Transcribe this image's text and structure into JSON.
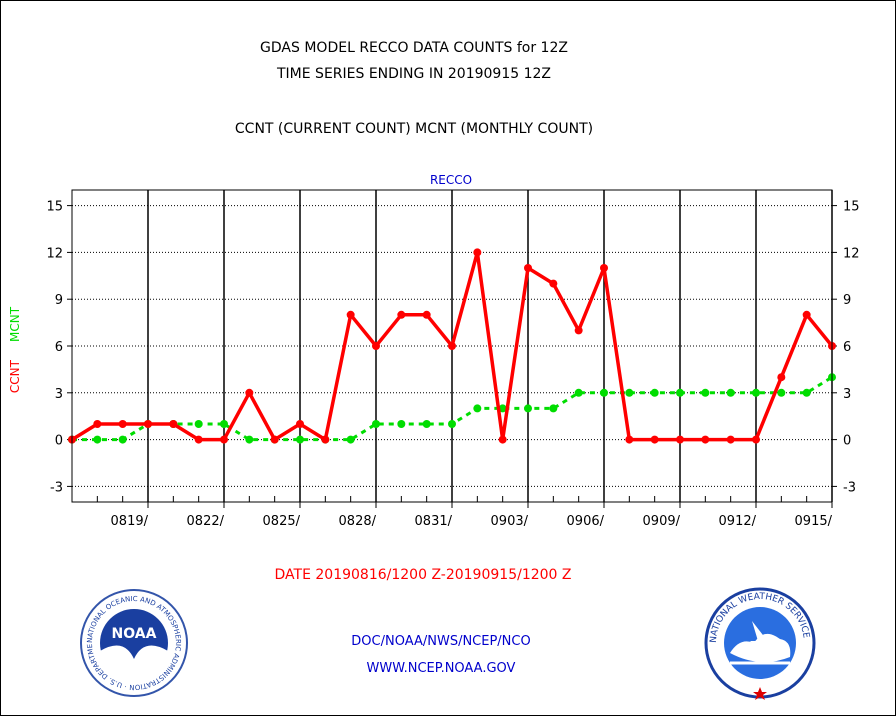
{
  "header": {
    "title_line1": "GDAS MODEL RECCO DATA COUNTS for 12Z",
    "title_line2": "TIME SERIES ENDING IN 20190915 12Z",
    "subtitle": "CCNT (CURRENT COUNT) MCNT (MONTHLY COUNT)"
  },
  "footer": {
    "date_range": "DATE 20190816/1200 Z-20190915/1200 Z",
    "credit": "DOC/NOAA/NWS/NCEP/NCO",
    "url": "WWW.NCEP.NOAA.GOV"
  },
  "logos": {
    "noaa_text": "NOAA",
    "noaa_ring_text": "NATIONAL OCEANIC AND ATMOSPHERIC ADMINISTRATION · U.S. DEPARTMENT OF COMMERCE",
    "nws_ring_text": "NATIONAL WEATHER SERVICE"
  },
  "colors": {
    "ccnt": "#ff0000",
    "mcnt": "#00dd00",
    "text_blue": "#0000cc",
    "text_red": "#ff0000"
  },
  "chart_data": {
    "type": "line",
    "title": "RECCO",
    "ylabel_ccnt": "CCNT",
    "ylabel_mcnt": "MCNT",
    "ylim": [
      -4,
      16
    ],
    "yticks": [
      -3,
      0,
      3,
      6,
      9,
      12,
      15
    ],
    "ytick_labels": [
      "-3",
      "0",
      "3",
      "6",
      "9",
      "12",
      "15"
    ],
    "x_start": "20190816",
    "xticks": [
      {
        "label": "0819/",
        "day": 3
      },
      {
        "label": "0822/",
        "day": 6
      },
      {
        "label": "0825/",
        "day": 9
      },
      {
        "label": "0828/",
        "day": 12
      },
      {
        "label": "0831/",
        "day": 15
      },
      {
        "label": "0903/",
        "day": 18
      },
      {
        "label": "0906/",
        "day": 21
      },
      {
        "label": "0909/",
        "day": 24
      },
      {
        "label": "0912/",
        "day": 27
      },
      {
        "label": "0915/",
        "day": 30
      }
    ],
    "grid": true,
    "series": [
      {
        "name": "CCNT",
        "color": "#ff0000",
        "values": [
          0,
          1,
          1,
          1,
          1,
          0,
          0,
          3,
          0,
          1,
          0,
          8,
          6,
          8,
          8,
          6,
          12,
          0,
          11,
          10,
          7,
          11,
          0,
          0,
          0,
          0,
          0,
          0,
          4,
          8,
          6
        ]
      },
      {
        "name": "MCNT",
        "color": "#00dd00",
        "values": [
          0,
          0,
          0,
          1,
          1,
          1,
          1,
          0,
          0,
          0,
          0,
          0,
          1,
          1,
          1,
          1,
          2,
          2,
          2,
          2,
          3,
          3,
          3,
          3,
          3,
          3,
          3,
          3,
          3,
          3,
          4
        ]
      }
    ]
  }
}
